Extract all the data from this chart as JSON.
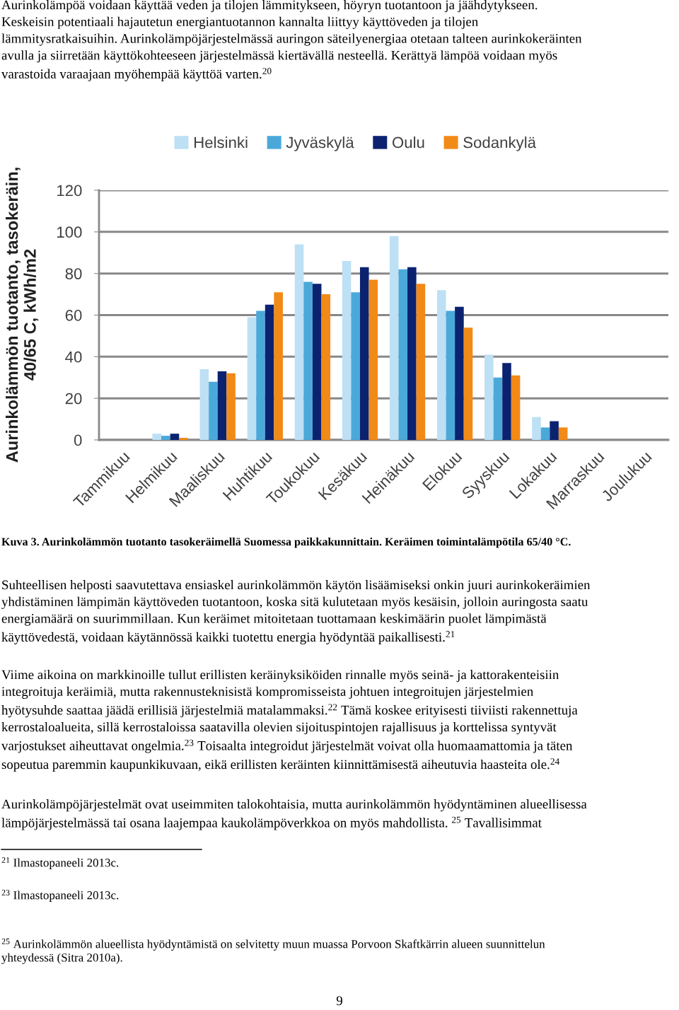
{
  "chart_data": {
    "type": "bar",
    "ylabel": "Aurinkolämmön tuotanto, tasokeräin,\n40/65 C, kWh/m2",
    "categories": [
      "Tammikuu",
      "Helmikuu",
      "Maaliskuu",
      "Huhtikuu",
      "Toukokuu",
      "Kesäkuu",
      "Heinäkuu",
      "Elokuu",
      "Syyskuu",
      "Lokakuu",
      "Marraskuu",
      "Joulukuu"
    ],
    "series": [
      {
        "name": "Helsinki",
        "color": "#bde0f5",
        "values": [
          0,
          3,
          34,
          59,
          94,
          86,
          98,
          72,
          41,
          11,
          0,
          0
        ]
      },
      {
        "name": "Jyväskylä",
        "color": "#4ba9d9",
        "values": [
          0,
          2,
          28,
          62,
          76,
          71,
          82,
          62,
          30,
          6,
          0,
          0
        ]
      },
      {
        "name": "Oulu",
        "color": "#0b2270",
        "values": [
          0,
          3,
          33,
          65,
          75,
          83,
          83,
          64,
          37,
          9,
          0,
          0
        ]
      },
      {
        "name": "Sodankylä",
        "color": "#f28a17",
        "values": [
          0,
          1,
          32,
          71,
          70,
          77,
          75,
          54,
          31,
          6,
          0,
          0
        ]
      }
    ],
    "ylim": [
      0,
      120
    ],
    "yticks": [
      0,
      20,
      40,
      60,
      80,
      100,
      120
    ],
    "grid": "y",
    "legend": "top",
    "annotations": [
      "Aurinkolämpöä voidaan käyttää veden ja tilojen lämmitykseen, höyryn tuotantoon ja jäähdytykseen.\nKeskeisin potentiaali hajautetun energiantuotannon kannalta liittyy käyttöveden ja tilojen\nlämmitysratkaisuihin. Aurinkolämpöjärjestelmässä auringon säteilyenergiaa otetaan talteen aurinkokeräinten\navulla ja siirretään käyttökohteeseen järjestelmässä kiertävällä nesteellä. Kerättyä lämpöä voidaan myös\nvarastoida varaajaan myöhempää käyttöä varten.$^{20}$",
      "Kuva 3. Aurinkolämmön tuotanto tasokeräimellä Suomessa paikkakunnittain. Keräimen toimintalämpötila 65/40 °C.",
      "Suhteellisen helposti saavutettava ensiaskel aurinkolämmön käytön lisäämiseksi onkin juuri aurinkokeräimien\nyhdistäminen lämpimän käyttöveden tuotantoon, koska sitä kulutetaan myös kesäisin, jolloin auringosta saatu\nenergiamäärä on suurimmillaan. Kun keräimet mitoitetaan tuottamaan keskimäärin puolet lämpimästä\nkäyttövedestä, voidaan käytännössä kaikki tuotettu energia hyödyntää paikallisesti.$^{21}$",
      "Viime aikoina on markkinoille tullut erillisten keräinyksiköiden rinnalle myös seinä- ja kattorakenteisiin\nintegroituja keräimiä, mutta rakennusteknisistä kompromisseista johtuen integroitujen järjestelmien\nhyötysuhde saattaa jäädä erillisiä järjestelmiä matalammaksi.$^{22}$ Tämä koskee erityisesti tiiviisti rakennettuja\nkerrostaloalueita, sillä kerrostaloissa saatavilla olevien sijoituspintojen rajallisuus ja korttelissa syntyvät\nvarjostukset aiheuttavat ongelmia.$^{23}$ Toisaalta integroidut järjestelmät voivat olla huomaamattomia ja täten\nsopeutua paremmin kaupunkikuvaan, eikä erillisten keräinten kiinnittämisestä aiheutuvia haasteita ole.$^{24}$",
      "Aurinkolämpöjärjestelmät ovat useimmiten talokohtaisia, mutta aurinkolämmön hyödyntäminen alueellisessa\nlämpöjärjestelmässä tai osana laajempaa kaukolämpöverkkoa on myös mahdollista. $^{25}$ Tavallisimmat",
      "$^{21}$ Ilmastopaneeli 2013c.",
      "$^{23}$ Ilmastopaneeli 2013c.",
      "$^{25}$ Aurinkolämmön alueellista hyödyntämistä on selvitetty muun muassa Porvoon Skaftkärrin alueen suunnittelun\nyhteydessä (Sitra 2010a).",
      "9"
    ]
  }
}
